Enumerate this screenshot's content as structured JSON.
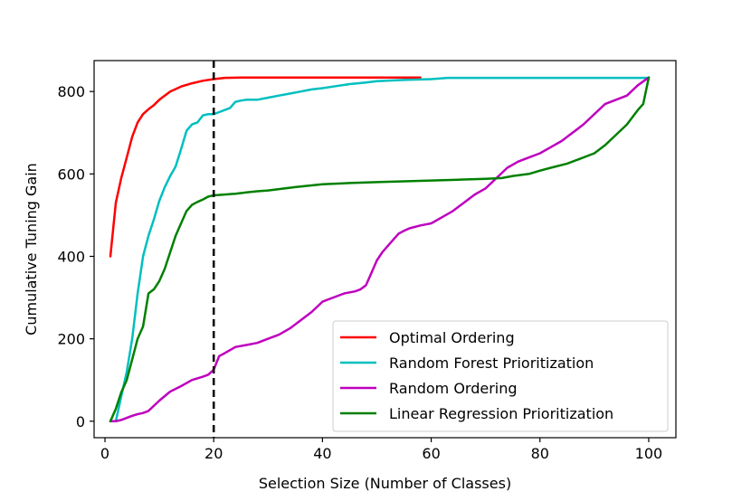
{
  "chart_data": {
    "type": "line",
    "title": "",
    "xlabel": "Selection Size (Number of Classes)",
    "ylabel": "Cumulative Tuning Gain",
    "xlim": [
      -2,
      105
    ],
    "ylim": [
      -40,
      875
    ],
    "xticks": [
      0,
      20,
      40,
      60,
      80,
      100
    ],
    "yticks": [
      0,
      200,
      400,
      600,
      800
    ],
    "xtick_labels": [
      "0",
      "20",
      "40",
      "60",
      "80",
      "100"
    ],
    "ytick_labels": [
      "0",
      "200",
      "400",
      "600",
      "800"
    ],
    "grid": false,
    "legend_position": "bottom-right",
    "vline": {
      "x": 20,
      "style": "dashed",
      "color": "#000000"
    },
    "series": [
      {
        "name": "Optimal Ordering",
        "color": "#ff0000",
        "x": [
          1,
          2,
          3,
          4,
          5,
          6,
          7,
          8,
          9,
          10,
          12,
          14,
          16,
          18,
          20,
          22,
          25,
          30,
          40,
          50,
          58
        ],
        "y": [
          400,
          530,
          590,
          640,
          690,
          725,
          745,
          757,
          767,
          780,
          800,
          812,
          820,
          826,
          830,
          833,
          834,
          834,
          834,
          834,
          834
        ]
      },
      {
        "name": "Random Forest Prioritization",
        "color": "#00bfbf",
        "x": [
          2,
          3,
          4,
          5,
          6,
          7,
          8,
          9,
          10,
          11,
          12,
          13,
          14,
          15,
          16,
          17,
          18,
          19,
          20,
          21,
          22,
          23,
          24,
          25,
          26,
          28,
          30,
          32,
          34,
          36,
          38,
          40,
          42,
          45,
          48,
          50,
          55,
          60,
          63,
          70,
          80,
          90,
          100
        ],
        "y": [
          0,
          60,
          120,
          200,
          310,
          400,
          450,
          490,
          535,
          568,
          595,
          618,
          660,
          705,
          720,
          725,
          742,
          745,
          745,
          750,
          755,
          760,
          775,
          778,
          780,
          780,
          785,
          790,
          795,
          800,
          805,
          808,
          812,
          818,
          822,
          825,
          828,
          830,
          833,
          833,
          833,
          833,
          833
        ]
      },
      {
        "name": "Random Ordering",
        "color": "#bf00bf",
        "x": [
          1,
          2,
          3,
          4,
          5,
          6,
          7,
          8,
          10,
          12,
          14,
          16,
          18,
          19,
          20,
          21,
          22,
          24,
          26,
          28,
          30,
          32,
          34,
          36,
          38,
          40,
          42,
          44,
          46,
          47,
          48,
          49,
          50,
          51,
          52,
          53,
          54,
          55,
          56,
          58,
          60,
          62,
          64,
          66,
          68,
          70,
          72,
          74,
          76,
          78,
          80,
          82,
          84,
          86,
          88,
          90,
          92,
          94,
          96,
          98,
          100
        ],
        "y": [
          0,
          0,
          3,
          8,
          13,
          17,
          20,
          25,
          50,
          72,
          85,
          100,
          108,
          113,
          125,
          158,
          165,
          180,
          185,
          190,
          200,
          210,
          225,
          245,
          265,
          290,
          300,
          310,
          315,
          320,
          330,
          360,
          390,
          410,
          425,
          440,
          455,
          462,
          468,
          475,
          480,
          495,
          510,
          530,
          550,
          565,
          590,
          615,
          630,
          640,
          650,
          665,
          680,
          700,
          720,
          745,
          770,
          780,
          790,
          815,
          834
        ]
      },
      {
        "name": "Linear Regression Prioritization",
        "color": "#008000",
        "x": [
          1,
          2,
          3,
          4,
          5,
          6,
          7,
          8,
          9,
          10,
          11,
          12,
          13,
          14,
          15,
          16,
          17,
          18,
          19,
          20,
          22,
          24,
          26,
          28,
          30,
          35,
          40,
          45,
          50,
          55,
          60,
          65,
          70,
          73,
          75,
          78,
          80,
          82,
          85,
          87,
          90,
          92,
          94,
          96,
          98,
          99,
          100
        ],
        "y": [
          0,
          30,
          70,
          100,
          150,
          200,
          230,
          310,
          320,
          340,
          370,
          410,
          450,
          480,
          510,
          525,
          532,
          538,
          545,
          548,
          550,
          552,
          555,
          558,
          560,
          568,
          575,
          578,
          580,
          582,
          584,
          586,
          588,
          590,
          595,
          600,
          608,
          615,
          625,
          635,
          650,
          670,
          695,
          720,
          755,
          770,
          834
        ]
      }
    ]
  }
}
